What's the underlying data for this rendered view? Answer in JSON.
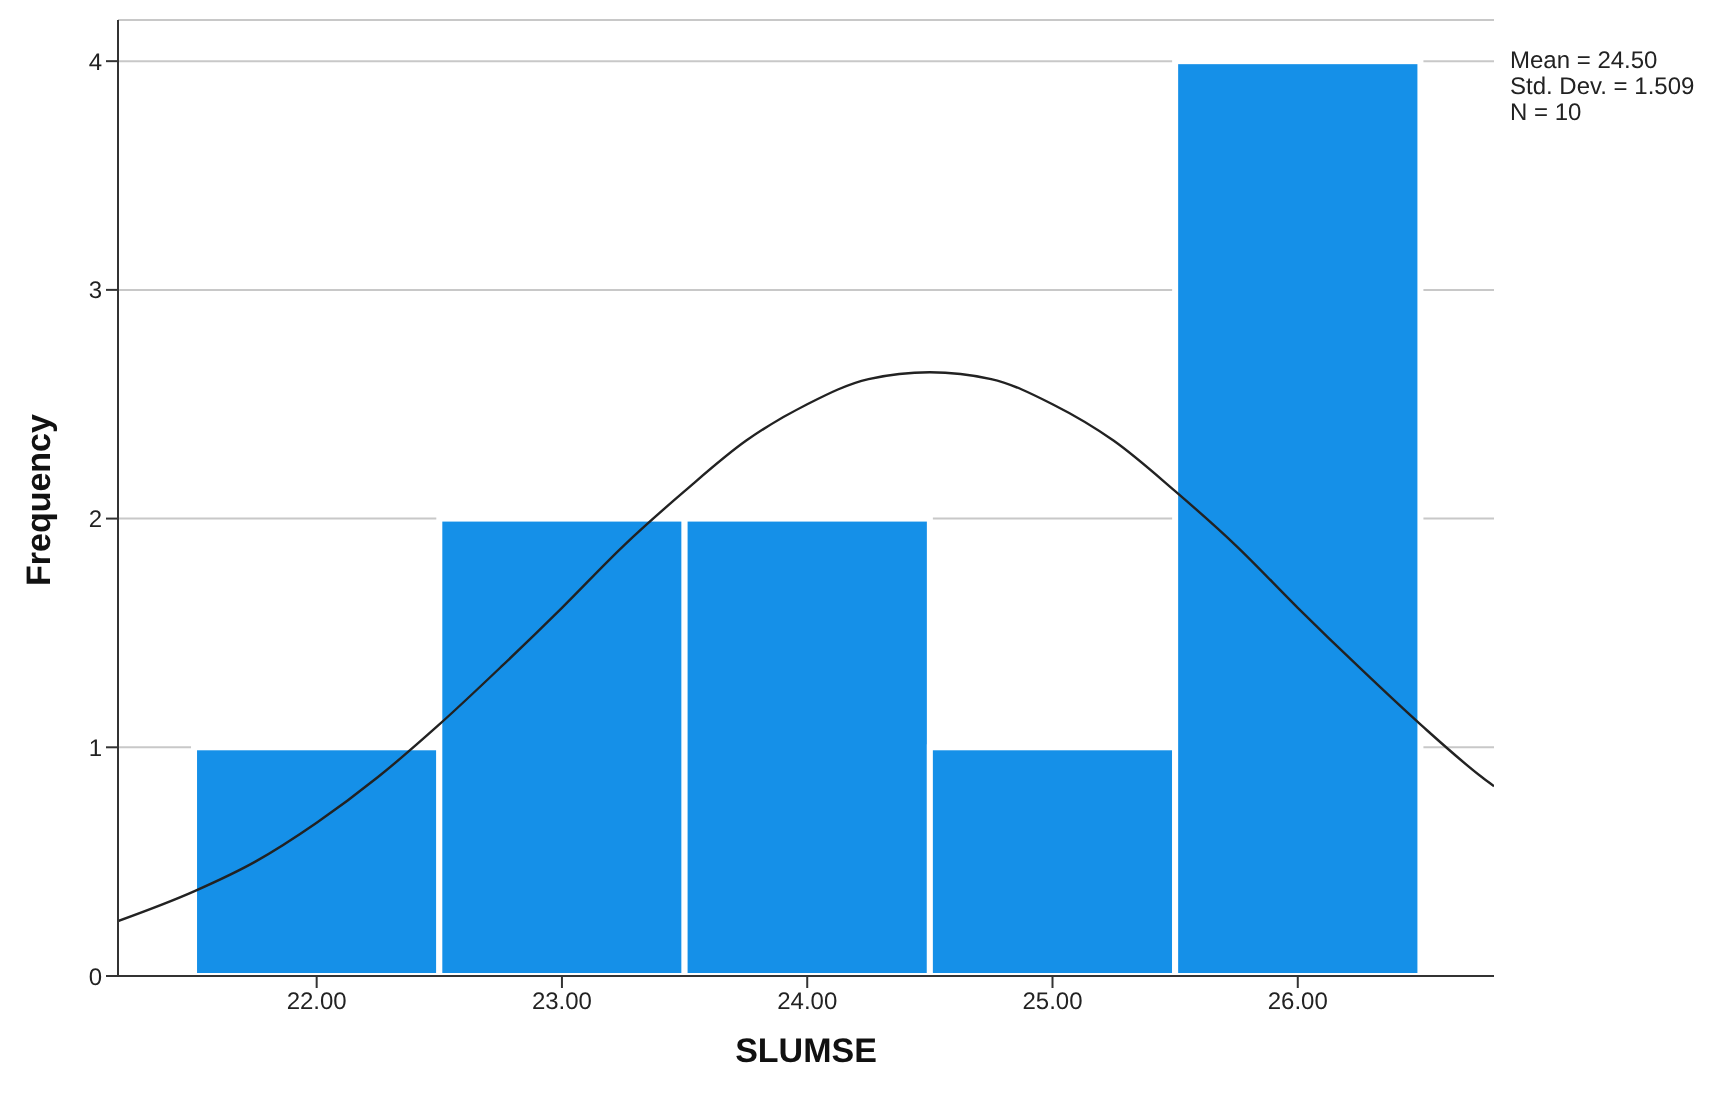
{
  "chart_data": {
    "type": "histogram",
    "xlabel": "SLUMSE",
    "ylabel": "Frequency",
    "bins": [
      21.5,
      22.5,
      23.5,
      24.5,
      25.5,
      26.5
    ],
    "values": [
      1,
      2,
      2,
      1,
      4
    ],
    "color": "#1590e8",
    "xlim": [
      21.19,
      26.8
    ],
    "xticks": [
      {
        "value": 22,
        "label": "22.00"
      },
      {
        "value": 23,
        "label": "23.00"
      },
      {
        "value": 24,
        "label": "24.00"
      },
      {
        "value": 25,
        "label": "25.00"
      },
      {
        "value": 26,
        "label": "26.00"
      }
    ],
    "ylim": [
      0,
      4.18
    ],
    "yticks": [
      0,
      1,
      2,
      3,
      4
    ],
    "grid": "y",
    "marker": "none",
    "legend": false,
    "series": [
      {
        "type": "line",
        "color": "#222222",
        "x": [
          21.19,
          21.5,
          21.75,
          22,
          22.25,
          22.5,
          22.75,
          23,
          23.25,
          23.5,
          23.75,
          24,
          24.25,
          24.5,
          24.75,
          25,
          25.25,
          25.5,
          25.75,
          26,
          26.25,
          26.5,
          26.75,
          26.8
        ],
        "values": [
          0.24,
          0.37,
          0.5,
          0.67,
          0.87,
          1.1,
          1.35,
          1.61,
          1.88,
          2.12,
          2.34,
          2.5,
          2.61,
          2.64,
          2.61,
          2.5,
          2.34,
          2.12,
          1.88,
          1.61,
          1.35,
          1.1,
          0.87,
          0.83
        ]
      }
    ],
    "annotations": [
      "Mean = 24.50",
      "Std. Dev. = 1.509",
      "N = 10"
    ]
  }
}
